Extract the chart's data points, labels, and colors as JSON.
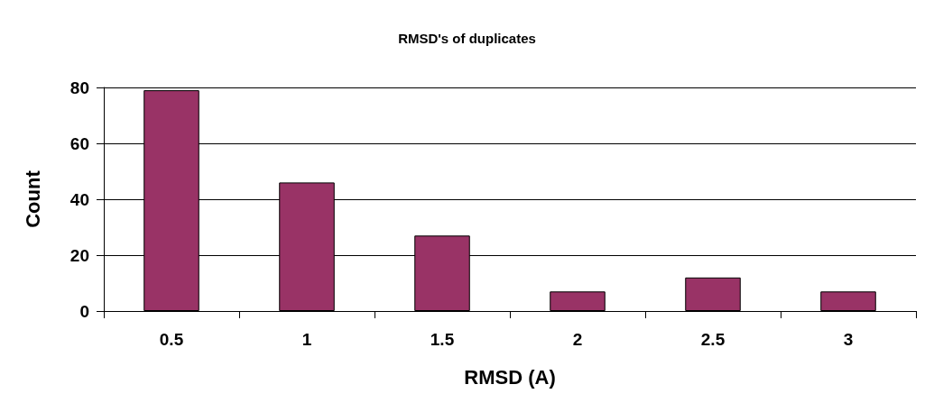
{
  "chart_data": {
    "type": "bar",
    "title": "RMSD's of duplicates",
    "xlabel": "RMSD (A)",
    "ylabel": "Count",
    "categories": [
      "0.5",
      "1",
      "1.5",
      "2",
      "2.5",
      "3"
    ],
    "values": [
      79,
      46,
      27,
      7,
      12,
      7
    ],
    "color": "#993366",
    "ylim": [
      0,
      80
    ],
    "yticks": [
      0,
      20,
      40,
      60,
      80
    ],
    "grid": "y"
  }
}
